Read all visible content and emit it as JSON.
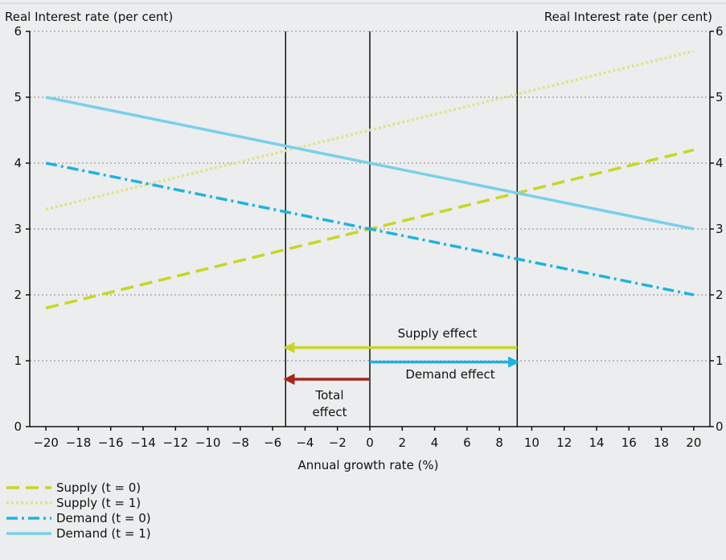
{
  "chart_data": {
    "type": "line",
    "xlabel": "Annual growth rate (%)",
    "ylabel_left": "Real Interest rate (per cent)",
    "ylabel_right": "Real Interest rate (per cent)",
    "xlim": [
      -21,
      21
    ],
    "ylim": [
      0,
      6
    ],
    "x_ticks": [
      -20,
      -18,
      -16,
      -14,
      -12,
      -10,
      -8,
      -6,
      -4,
      -2,
      0,
      2,
      4,
      6,
      8,
      10,
      12,
      14,
      16,
      18,
      20
    ],
    "x_tick_labels": [
      "−20",
      "−18",
      "−16",
      "−14",
      "−12",
      "−10",
      "−8",
      "−6",
      "−4",
      "−2",
      "0",
      "2",
      "4",
      "6",
      "8",
      "10",
      "12",
      "14",
      "16",
      "18",
      "20"
    ],
    "y_ticks": [
      0,
      1,
      2,
      3,
      4,
      5,
      6
    ],
    "y_tick_labels": [
      "0",
      "1",
      "2",
      "3",
      "4",
      "5",
      "6"
    ],
    "grid": "horizontal dotted",
    "legend_position": "bottom-left",
    "series": [
      {
        "name": "Supply (t = 0)",
        "x": [
          -20,
          20
        ],
        "y": [
          1.8,
          4.2
        ],
        "color": "#c8d526",
        "style": "dashed"
      },
      {
        "name": "Supply  (t = 1)",
        "x": [
          -20,
          20
        ],
        "y": [
          3.3,
          5.7
        ],
        "color": "#dde48b",
        "style": "dotted"
      },
      {
        "name": "Demand (t = 0)",
        "x": [
          -20,
          20
        ],
        "y": [
          4.0,
          2.0
        ],
        "color": "#1eb3df",
        "style": "dashdot"
      },
      {
        "name": "Demand  (t = 1)",
        "x": [
          -20,
          20
        ],
        "y": [
          5.0,
          3.0
        ],
        "color": "#79cfeb",
        "style": "solid"
      }
    ],
    "vertical_lines": [
      -5.2,
      0,
      9.1
    ],
    "arrows": [
      {
        "label": "Supply effect",
        "from": [
          9.1,
          1.2
        ],
        "to": [
          -5.2,
          1.2
        ],
        "color": "#c8d526"
      },
      {
        "label": "Demand effect",
        "from": [
          0,
          0.98
        ],
        "to": [
          9.1,
          0.98
        ],
        "color": "#1eb3df"
      },
      {
        "label": "Total effect",
        "from": [
          0,
          0.72
        ],
        "to": [
          -5.2,
          0.72
        ],
        "color": "#a4281b"
      }
    ],
    "annotations": {
      "supply_effect": "Supply effect",
      "demand_effect": "Demand effect",
      "total_effect_line1": "Total",
      "total_effect_line2": "effect"
    }
  }
}
